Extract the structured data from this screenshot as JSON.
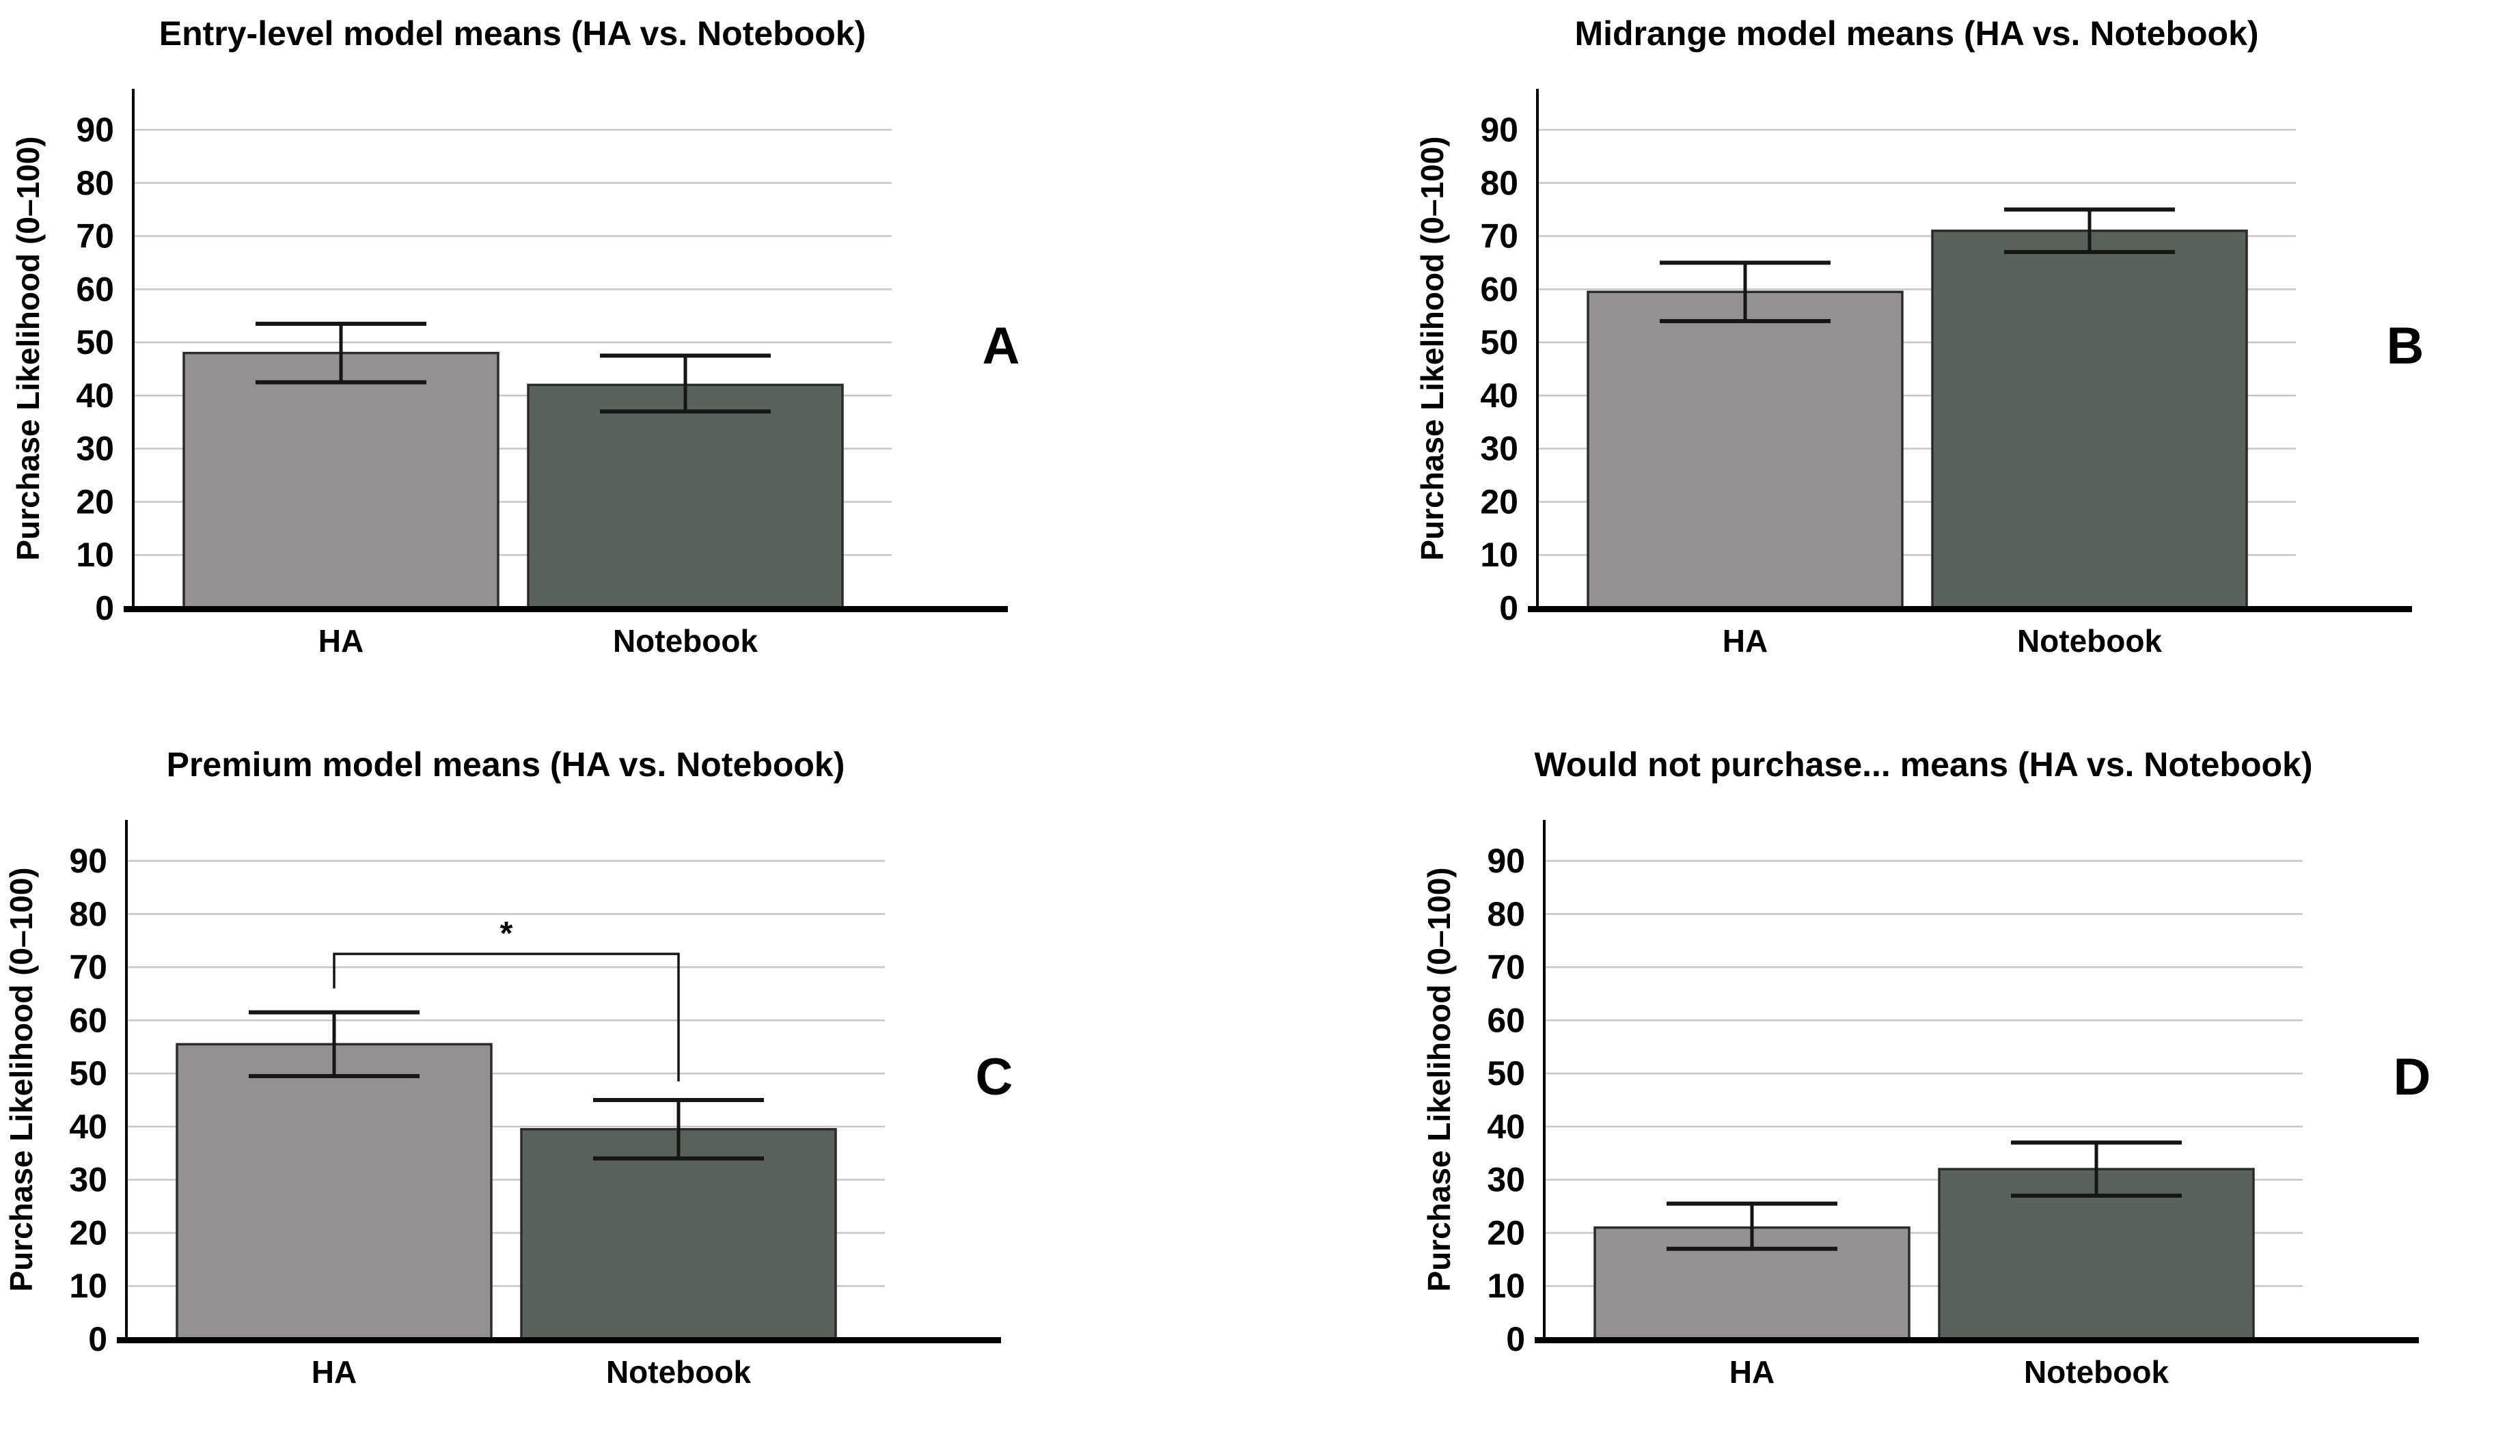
{
  "figure": {
    "description": "Four-panel bar chart figure comparing HA vs. Notebook purchase likelihood means",
    "panels_order": [
      "A",
      "B",
      "C",
      "D"
    ]
  },
  "style": {
    "background": "#ffffff",
    "bar_colors": {
      "HA": "#959091",
      "Notebook": "#5a625c"
    },
    "bar_border": "#2b2b2b",
    "gridline_color": "#c6c6c6",
    "axis_color": "#000000",
    "error_bar_color": "#161616",
    "text_color": "#000000"
  },
  "chart_data": [
    {
      "type": "bar",
      "panel_letter": "A",
      "title": "Entry-level model means (HA vs. Notebook)",
      "ylabel": "Purchase Likelihood (0–100)",
      "xlabel": "",
      "categories": [
        "HA",
        "Notebook"
      ],
      "values": [
        48,
        42
      ],
      "error_low": [
        42.5,
        37
      ],
      "error_high": [
        53.5,
        47.5
      ],
      "yticks": [
        0,
        10,
        20,
        30,
        40,
        50,
        60,
        70,
        80,
        90
      ],
      "ylim": [
        0,
        97
      ],
      "grid": true,
      "legend": null,
      "significance": null
    },
    {
      "type": "bar",
      "panel_letter": "B",
      "title": "Midrange model means (HA vs. Notebook)",
      "ylabel": "Purchase Likelihood (0–100)",
      "xlabel": "",
      "categories": [
        "HA",
        "Notebook"
      ],
      "values": [
        59.5,
        71
      ],
      "error_low": [
        54,
        67
      ],
      "error_high": [
        65,
        75
      ],
      "yticks": [
        0,
        10,
        20,
        30,
        40,
        50,
        60,
        70,
        80,
        90
      ],
      "ylim": [
        0,
        97
      ],
      "grid": true,
      "legend": null,
      "significance": null
    },
    {
      "type": "bar",
      "panel_letter": "C",
      "title": "Premium model means (HA vs. Notebook)",
      "ylabel": "Purchase Likelihood (0–100)",
      "xlabel": "",
      "categories": [
        "HA",
        "Notebook"
      ],
      "values": [
        55.5,
        39.5
      ],
      "error_low": [
        49.5,
        34
      ],
      "error_high": [
        61.5,
        45
      ],
      "yticks": [
        0,
        10,
        20,
        30,
        40,
        50,
        60,
        70,
        80,
        90
      ],
      "ylim": [
        0,
        97
      ],
      "grid": true,
      "legend": null,
      "significance": {
        "label": "*",
        "bar_y": 72.5,
        "left_drop_to": 66,
        "right_drop_to": 48.5
      }
    },
    {
      "type": "bar",
      "panel_letter": "D",
      "title": "Would not purchase... means (HA vs. Notebook)",
      "ylabel": "Purchase Likelihood (0–100)",
      "xlabel": "",
      "categories": [
        "HA",
        "Notebook"
      ],
      "values": [
        21,
        32
      ],
      "error_low": [
        17,
        27
      ],
      "error_high": [
        25.5,
        37
      ],
      "yticks": [
        0,
        10,
        20,
        30,
        40,
        50,
        60,
        70,
        80,
        90
      ],
      "ylim": [
        0,
        97
      ],
      "grid": true,
      "legend": null,
      "significance": null
    }
  ]
}
